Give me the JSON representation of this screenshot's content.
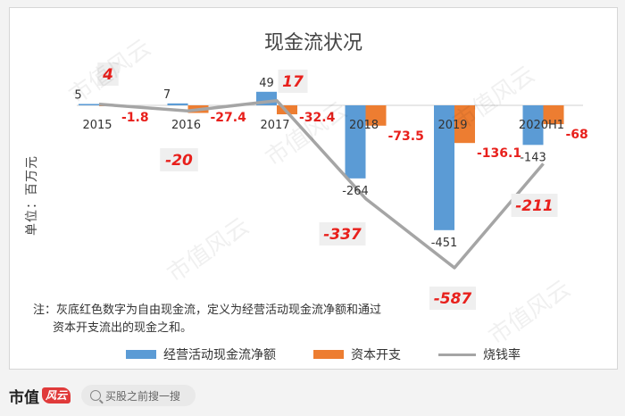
{
  "chart_data": {
    "type": "bar+line",
    "title": "现金流状况",
    "ylabel": "单位：百万元",
    "categories": [
      "2015",
      "2016",
      "2017",
      "2018",
      "2019",
      "2020H1"
    ],
    "series": [
      {
        "name": "经营活动现金流净额",
        "kind": "bar",
        "color": "#5b9bd5",
        "values": [
          5,
          7,
          49,
          -264,
          -451,
          -143
        ]
      },
      {
        "name": "资本开支",
        "kind": "bar",
        "color": "#ed7d31",
        "values": [
          -1.8,
          -27.4,
          -32.4,
          -73.5,
          -136.1,
          -68
        ]
      },
      {
        "name": "烧钱率",
        "kind": "line",
        "color": "#a5a5a5",
        "values": [
          4,
          -20,
          17,
          -337,
          -587,
          -211
        ]
      }
    ],
    "cap_labels": [
      "-1.8",
      "-27.4",
      "-32.4",
      "-73.5",
      "-136.1",
      "-68"
    ],
    "burn_labels": [
      "4",
      "-20",
      "17",
      "-337",
      "-587",
      "-211"
    ],
    "legend_position": "bottom",
    "grid": false
  },
  "note": {
    "line1": "注：灰底红色数字为自由现金流，定义为经营活动现金流净额和通过",
    "line2": "资本开支流出的现金之和。"
  },
  "legend": {
    "op": "经营活动现金流净额",
    "capex": "资本开支",
    "burn": "烧钱率"
  },
  "watermark": "市值风云",
  "footer": {
    "brand": "市值",
    "brand_mark": "风云",
    "search_placeholder": "买股之前搜一搜"
  }
}
